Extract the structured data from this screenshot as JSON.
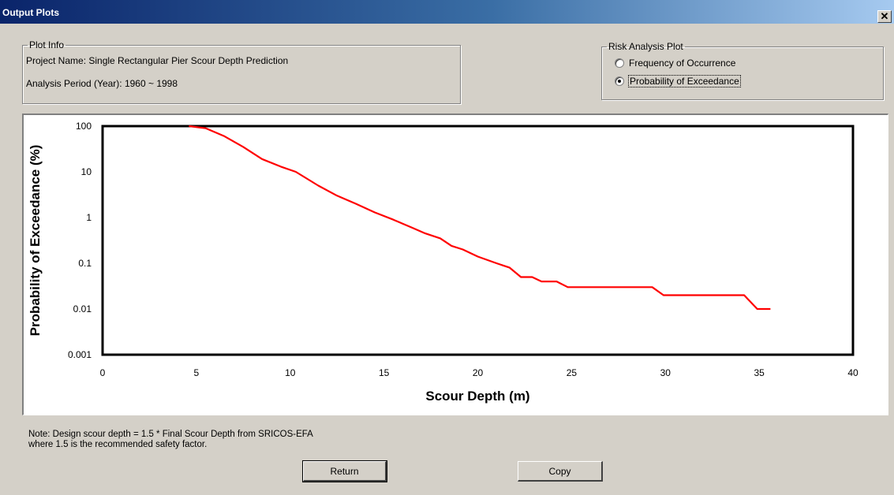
{
  "window": {
    "title": "Output Plots",
    "close_glyph": "✕"
  },
  "plot_info": {
    "legend": "Plot Info",
    "project_line": "Project Name: Single Rectangular Pier Scour Depth Prediction",
    "period_line": "Analysis Period (Year): 1960 ~ 1998"
  },
  "risk_plot": {
    "legend": "Risk Analysis Plot",
    "options": [
      {
        "label": "Frequency of Occurrence",
        "checked": false
      },
      {
        "label": "Probability of Exceedance",
        "checked": true
      }
    ]
  },
  "note": {
    "line1": "Note: Design scour depth =  1.5 *  Final Scour Depth from SRICOS-EFA",
    "line2": " where 1.5 is the recommended safety factor."
  },
  "buttons": {
    "return_label": "Return",
    "copy_label": "Copy"
  },
  "chart_data": {
    "type": "line",
    "title": "",
    "xlabel": "Scour Depth (m)",
    "ylabel": "Probability of Exceedance (%)",
    "xlim": [
      0,
      40
    ],
    "ylim": [
      0.001,
      100
    ],
    "y_scale": "log",
    "x_ticks": [
      "0",
      "5",
      "10",
      "15",
      "20",
      "25",
      "30",
      "35",
      "40"
    ],
    "y_ticks": [
      "100",
      "10",
      "1",
      "0.1",
      "0.01",
      "0.001"
    ],
    "grid": false,
    "line_color": "#ff0000",
    "series": [
      {
        "x": [
          4.6,
          5.5,
          6.5,
          7.5,
          8.5,
          9.5,
          10.3,
          11.5,
          12.5,
          13.5,
          14.5,
          15.5,
          16.5,
          17.2,
          18.0,
          18.6,
          19.2,
          20.0,
          21.0,
          21.7,
          22.3,
          22.9,
          23.4,
          24.2,
          24.8,
          25.5,
          27.0,
          28.5,
          29.3,
          29.9,
          31.0,
          32.5,
          34.2,
          34.9,
          35.6
        ],
        "y": [
          100,
          90,
          60,
          35,
          19,
          13,
          10,
          5,
          3,
          2,
          1.3,
          0.9,
          0.6,
          0.45,
          0.35,
          0.24,
          0.2,
          0.14,
          0.1,
          0.08,
          0.05,
          0.05,
          0.04,
          0.04,
          0.03,
          0.03,
          0.03,
          0.03,
          0.03,
          0.02,
          0.02,
          0.02,
          0.02,
          0.01,
          0.01
        ]
      }
    ]
  }
}
